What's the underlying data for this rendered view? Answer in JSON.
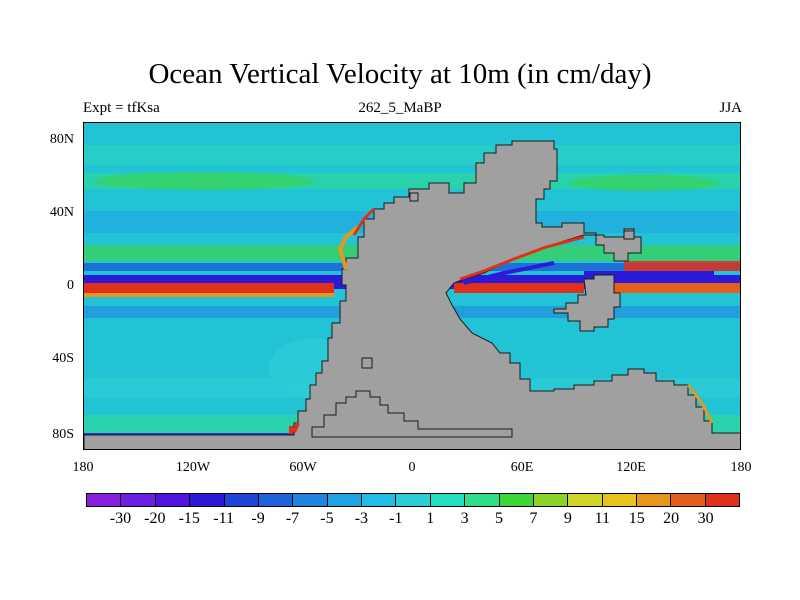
{
  "title": "Ocean Vertical Velocity at 10m (in cm/day)",
  "subtitle_left": "Expt = tfKsa",
  "subtitle_center": "262_5_MaBP",
  "subtitle_right": "JJA",
  "lat_labels": [
    "80N",
    "40N",
    "0",
    "40S",
    "80S"
  ],
  "lon_labels": [
    "180",
    "120W",
    "60W",
    "0",
    "60E",
    "120E",
    "180"
  ],
  "legend": {
    "labels": [
      "-30",
      "-20",
      "-15",
      "-11",
      "-9",
      "-7",
      "-5",
      "-3",
      "-1",
      "1",
      "3",
      "5",
      "7",
      "9",
      "11",
      "15",
      "20",
      "30"
    ],
    "colors": [
      "#8a1fe0",
      "#6f1fe3",
      "#5414df",
      "#2b1ad8",
      "#1f46d6",
      "#1c64d8",
      "#2085df",
      "#1fa4e2",
      "#23bce4",
      "#2dcdd5",
      "#25e0c0",
      "#2fdc8a",
      "#3dd637",
      "#8ad429",
      "#cfd426",
      "#e8c21d",
      "#e6971c",
      "#e2601c",
      "#e0301a"
    ]
  },
  "colors": {
    "ocean_base": "#23c3d6",
    "land": "#a0a0a0"
  }
}
